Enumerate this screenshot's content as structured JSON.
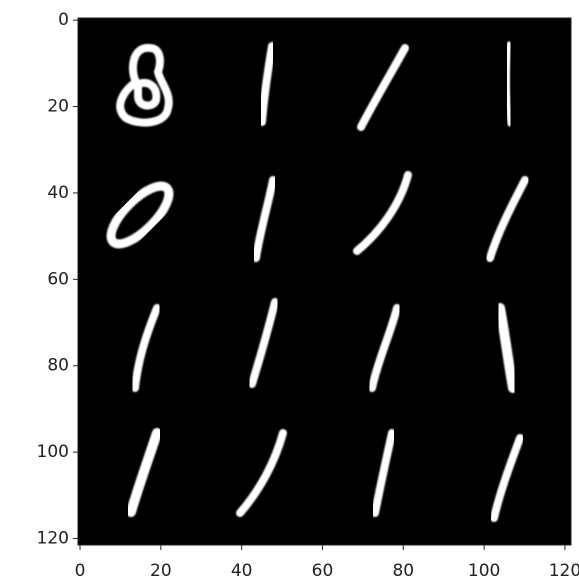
{
  "chart_data": {
    "type": "image",
    "xlim": [
      -0.5,
      121.5
    ],
    "ylim": [
      121.5,
      -0.5
    ],
    "xticks": [
      0,
      20,
      40,
      60,
      80,
      100,
      120
    ],
    "yticks": [
      0,
      20,
      40,
      60,
      80,
      100,
      120
    ],
    "cmap": "gray"
  }
}
